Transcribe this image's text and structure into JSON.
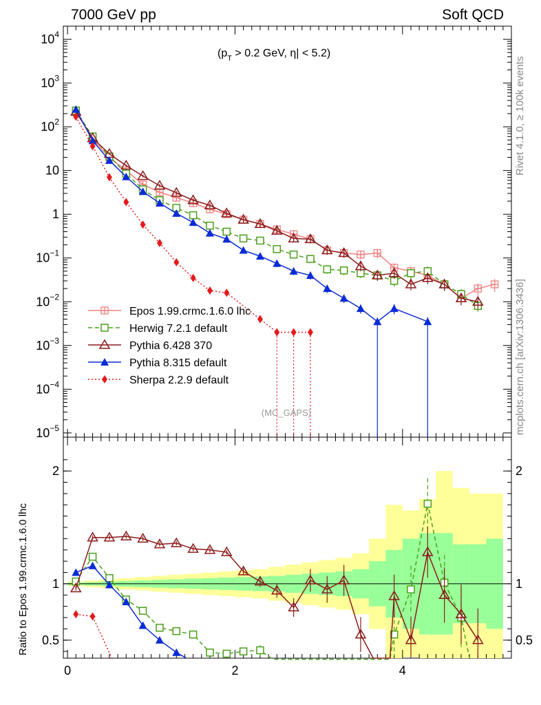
{
  "chart_data": [
    {
      "type": "line",
      "panel": "main",
      "title_left": "7000 GeV pp",
      "title_right": "Soft QCD",
      "annotation": "(p_T > 0.2 GeV, |η| < 5.2)",
      "annotation_parts": {
        "open": "(p",
        "sub": "T",
        "mid": " > 0.2 GeV, ",
        "eta": "η",
        "close": "| < 5.2)"
      },
      "analysis_label": "(MC_GAPS)",
      "side_label_top": "Rivet 4.1.0, ≥ 100k events",
      "side_label_bottom": "mcplots.cern.ch [arXiv:1306.3436]",
      "yscale": "log",
      "xlim": [
        -0.05,
        5.3
      ],
      "ylim": [
        8e-06,
        20000
      ],
      "yticks": [
        {
          "value": 10000,
          "base": "10",
          "exp": "4"
        },
        {
          "value": 1000,
          "base": "10",
          "exp": "3"
        },
        {
          "value": 100,
          "base": "10",
          "exp": "2"
        },
        {
          "value": 10,
          "base": "10",
          "exp": ""
        },
        {
          "value": 1,
          "base": "1",
          "exp": ""
        },
        {
          "value": 0.1,
          "base": "10",
          "exp": "−1"
        },
        {
          "value": 0.01,
          "base": "10",
          "exp": "−2"
        },
        {
          "value": 0.001,
          "base": "10",
          "exp": "−3"
        },
        {
          "value": 0.0001,
          "base": "10",
          "exp": "−4"
        },
        {
          "value": 1e-05,
          "base": "10",
          "exp": "−5"
        }
      ],
      "legend_position": "lower-left",
      "series": [
        {
          "name": "Epos 1.99.crmc.1.6.0 lhc",
          "color": "#f08080",
          "marker": "plus-square",
          "dash": "",
          "x": [
            0.1,
            0.3,
            0.5,
            0.7,
            0.9,
            1.1,
            1.3,
            1.5,
            1.7,
            1.9,
            2.1,
            2.3,
            2.5,
            2.7,
            2.9,
            3.1,
            3.3,
            3.5,
            3.7,
            3.9,
            4.1,
            4.3,
            4.5,
            4.7,
            4.9,
            5.1
          ],
          "y": [
            230,
            52,
            20,
            10,
            4.8,
            3.2,
            2.4,
            1.8,
            1.3,
            1.0,
            0.75,
            0.6,
            0.45,
            0.35,
            0.27,
            0.15,
            0.13,
            0.12,
            0.13,
            0.06,
            0.05,
            0.04,
            0.025,
            0.012,
            0.02,
            0.025
          ]
        },
        {
          "name": "Herwig 7.2.1 default",
          "color": "#4a9e1a",
          "marker": "open-square",
          "dash": "6,4",
          "x": [
            0.1,
            0.3,
            0.5,
            0.7,
            0.9,
            1.1,
            1.3,
            1.5,
            1.7,
            1.9,
            2.1,
            2.3,
            2.5,
            2.7,
            2.9,
            3.1,
            3.3,
            3.5,
            3.7,
            3.9,
            4.1,
            4.3,
            4.5,
            4.7,
            4.9
          ],
          "y": [
            235,
            60,
            21,
            8.5,
            3.7,
            2.1,
            1.4,
            0.95,
            0.55,
            0.4,
            0.28,
            0.25,
            0.16,
            0.12,
            0.095,
            0.055,
            0.052,
            0.045,
            0.04,
            0.03,
            0.045,
            0.05,
            0.025,
            0.015,
            0.008
          ]
        },
        {
          "name": "Pythia 6.428 370",
          "color": "#8b1a1a",
          "marker": "open-triangle",
          "dash": "",
          "x": [
            0.1,
            0.3,
            0.5,
            0.7,
            0.9,
            1.1,
            1.3,
            1.5,
            1.7,
            1.9,
            2.1,
            2.3,
            2.5,
            2.7,
            2.9,
            3.1,
            3.3,
            3.5,
            3.7,
            3.9,
            4.1,
            4.3,
            4.5,
            4.7,
            4.9
          ],
          "y": [
            220,
            55,
            24,
            13,
            7.5,
            4.5,
            3.1,
            2.1,
            1.6,
            1.05,
            0.75,
            0.6,
            0.42,
            0.28,
            0.27,
            0.15,
            0.13,
            0.065,
            0.04,
            0.045,
            0.025,
            0.035,
            0.025,
            0.012,
            0.01
          ]
        },
        {
          "name": "Pythia 8.315 default",
          "color": "#0a2bd6",
          "marker": "filled-triangle",
          "dash": "",
          "x": [
            0.1,
            0.3,
            0.5,
            0.7,
            0.9,
            1.1,
            1.3,
            1.5,
            1.7,
            1.9,
            2.1,
            2.3,
            2.5,
            2.7,
            2.9,
            3.1,
            3.3,
            3.5,
            3.7,
            3.9,
            4.3
          ],
          "y": [
            250,
            48,
            17,
            7.2,
            3.3,
            1.8,
            1.05,
            0.65,
            0.37,
            0.27,
            0.15,
            0.11,
            0.075,
            0.05,
            0.04,
            0.02,
            0.012,
            0.007,
            0.0035,
            0.007,
            0.0035
          ]
        },
        {
          "name": "Sherpa 2.2.9 default",
          "color": "#e41a1c",
          "marker": "diamond",
          "dash": "2,3",
          "x": [
            0.1,
            0.3,
            0.5,
            0.7,
            0.9,
            1.1,
            1.3,
            1.5,
            1.7,
            1.9,
            2.3,
            2.5,
            2.7,
            2.9
          ],
          "y": [
            170,
            36,
            7,
            1.9,
            0.58,
            0.22,
            0.08,
            0.035,
            0.018,
            0.016,
            0.004,
            0.002,
            0.002,
            0.002
          ]
        }
      ]
    },
    {
      "type": "line",
      "panel": "ratio",
      "ylabel": "Ratio to Epos 1.99.crmc.1.6.0 lhc",
      "xlim": [
        -0.05,
        5.3
      ],
      "ylim": [
        0.34,
        2.3
      ],
      "xticks": [
        0,
        2,
        4
      ],
      "xtick_labels": [
        "0",
        "2",
        "4"
      ],
      "yticks": [
        0.5,
        1,
        2
      ],
      "ytick_labels": [
        "0.5",
        "1",
        "2"
      ],
      "bands": {
        "x_edges": [
          0,
          0.2,
          0.4,
          0.6,
          0.8,
          1.0,
          1.2,
          1.4,
          1.6,
          1.8,
          2.0,
          2.2,
          2.4,
          2.6,
          2.8,
          3.0,
          3.2,
          3.4,
          3.6,
          3.8,
          4.0,
          4.2,
          4.4,
          4.6,
          4.8,
          5.0,
          5.2
        ],
        "green": [
          0.01,
          0.015,
          0.02,
          0.025,
          0.03,
          0.035,
          0.04,
          0.045,
          0.05,
          0.055,
          0.06,
          0.065,
          0.07,
          0.08,
          0.09,
          0.1,
          0.11,
          0.13,
          0.2,
          0.3,
          0.4,
          0.45,
          0.45,
          0.35,
          0.35,
          0.4
        ],
        "yellow": [
          0.02,
          0.03,
          0.04,
          0.05,
          0.06,
          0.07,
          0.08,
          0.09,
          0.1,
          0.11,
          0.12,
          0.13,
          0.15,
          0.17,
          0.19,
          0.21,
          0.23,
          0.27,
          0.4,
          0.7,
          0.65,
          0.75,
          1.0,
          0.85,
          0.8,
          0.8
        ]
      },
      "series": [
        {
          "name": "Herwig 7.2.1 default",
          "color": "#4a9e1a",
          "x": [
            0.1,
            0.3,
            0.5,
            0.7,
            0.9,
            1.1,
            1.3,
            1.5,
            1.7,
            1.9,
            2.1,
            2.3,
            2.45,
            3.85,
            3.9,
            4.1,
            4.3,
            4.5,
            4.7,
            4.8
          ],
          "y": [
            1.02,
            1.24,
            1.05,
            0.86,
            0.76,
            0.61,
            0.58,
            0.55,
            0.39,
            0.38,
            0.4,
            0.41,
            0.33,
            0.33,
            0.55,
            0.95,
            1.71,
            1.01,
            0.7,
            0.34
          ]
        },
        {
          "name": "Pythia 6.428 370",
          "color": "#8b1a1a",
          "x": [
            0.1,
            0.3,
            0.5,
            0.7,
            0.9,
            1.1,
            1.3,
            1.5,
            1.7,
            1.9,
            2.1,
            2.3,
            2.5,
            2.7,
            2.9,
            3.1,
            3.3,
            3.5,
            3.65,
            3.85,
            3.9,
            4.1,
            4.3,
            4.5,
            4.7,
            4.9
          ],
          "y": [
            0.96,
            1.41,
            1.41,
            1.42,
            1.4,
            1.35,
            1.36,
            1.31,
            1.3,
            1.28,
            1.11,
            1.02,
            0.94,
            0.79,
            1.03,
            0.95,
            1.03,
            0.55,
            0.34,
            0.34,
            0.89,
            0.5,
            1.28,
            0.9,
            0.73,
            0.5
          ]
        },
        {
          "name": "Pythia 8.315 default",
          "color": "#0a2bd6",
          "x": [
            0.1,
            0.3,
            0.5,
            0.7,
            0.9,
            1.1,
            1.3,
            1.42
          ],
          "y": [
            1.1,
            1.16,
            0.99,
            0.84,
            0.63,
            0.5,
            0.39,
            0.34
          ]
        },
        {
          "name": "Sherpa 2.2.9 default",
          "color": "#e41a1c",
          "x": [
            0.1,
            0.3,
            0.53
          ],
          "y": [
            0.73,
            0.71,
            0.34
          ]
        }
      ]
    }
  ]
}
